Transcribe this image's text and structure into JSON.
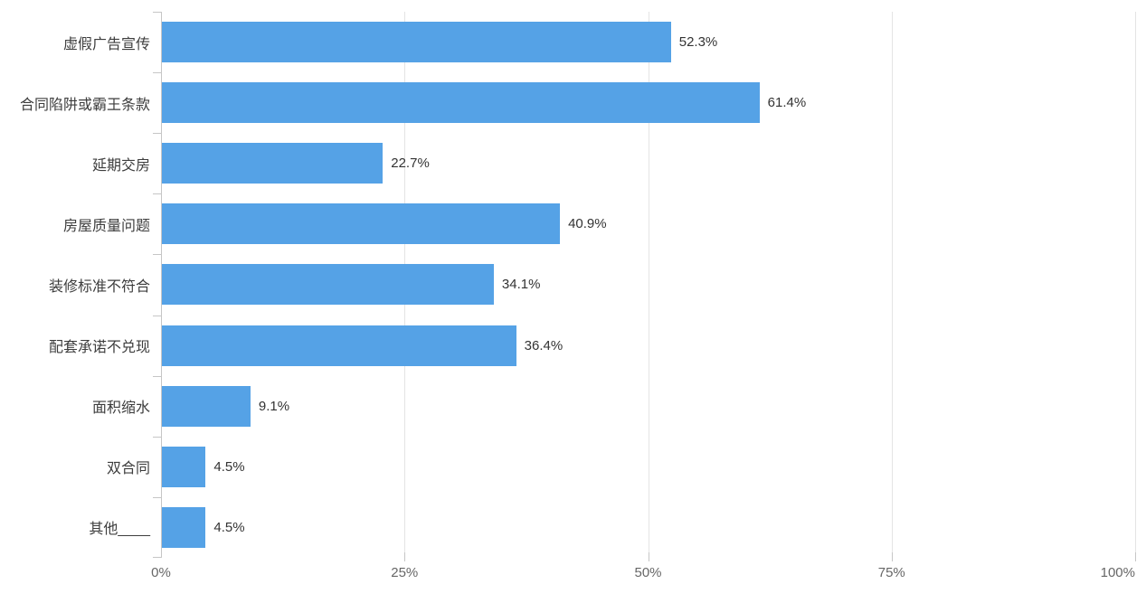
{
  "chart_data": {
    "type": "bar",
    "orientation": "horizontal",
    "title": "",
    "xlabel": "",
    "ylabel": "",
    "categories": [
      "虚假广告宣传",
      "合同陷阱或霸王条款",
      "延期交房",
      "房屋质量问题",
      "装修标准不符合",
      "配套承诺不兑现",
      "面积缩水",
      "双合同",
      "其他____"
    ],
    "values": [
      52.3,
      61.4,
      22.7,
      40.9,
      34.1,
      36.4,
      9.1,
      4.5,
      4.5
    ],
    "value_labels": [
      "52.3%",
      "61.4%",
      "22.7%",
      "40.9%",
      "34.1%",
      "36.4%",
      "9.1%",
      "4.5%",
      "4.5%"
    ],
    "xlim": [
      0,
      100
    ],
    "x_ticks": [
      {
        "label": "0%",
        "value": 0
      },
      {
        "label": "25%",
        "value": 25
      },
      {
        "label": "50%",
        "value": 50
      },
      {
        "label": "75%",
        "value": 75
      },
      {
        "label": "100%",
        "value": 100
      }
    ],
    "grid": true,
    "legend": null,
    "bar_color": "#55a2e6"
  },
  "colors": {
    "bar": "#55a2e6",
    "gridline": "#e4e4e4",
    "axis": "#c6c6c6",
    "category_text": "#3d3d3d",
    "value_text": "#333333",
    "tick_text": "#666666",
    "background": "#ffffff"
  }
}
